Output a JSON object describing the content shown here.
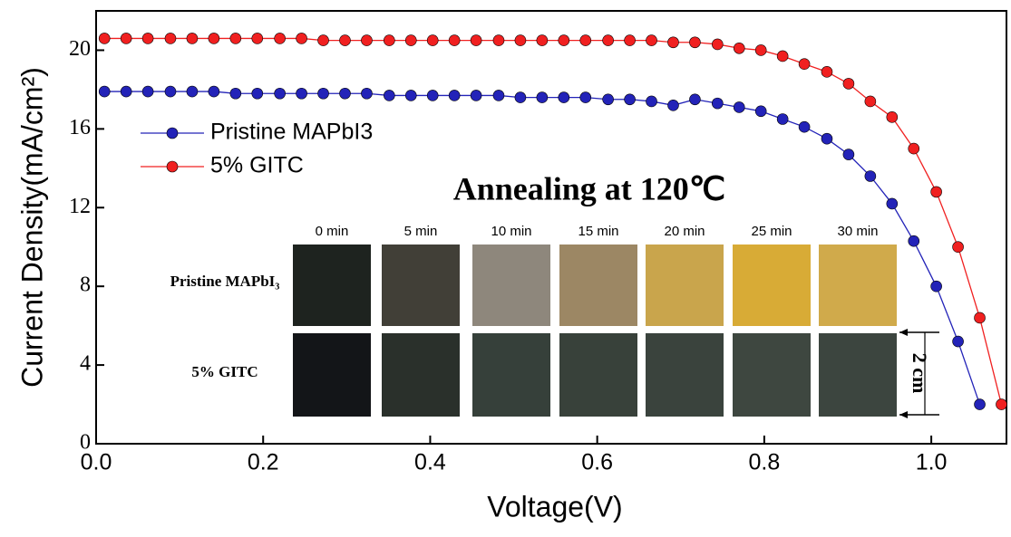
{
  "chart_data": {
    "type": "line",
    "x_label": "Voltage(V)",
    "y_label": "Current Density(mA/cm²)",
    "x": [
      0.01,
      0.036,
      0.062,
      0.089,
      0.115,
      0.141,
      0.167,
      0.193,
      0.22,
      0.246,
      0.272,
      0.298,
      0.324,
      0.351,
      0.377,
      0.403,
      0.429,
      0.455,
      0.482,
      0.508,
      0.534,
      0.56,
      0.586,
      0.613,
      0.639,
      0.665,
      0.691,
      0.717,
      0.744,
      0.77,
      0.796,
      0.822,
      0.848,
      0.875,
      0.901,
      0.927,
      0.953,
      0.979,
      1.006,
      1.032,
      1.058,
      1.084
    ],
    "series": [
      {
        "name": "Pristine MAPbI3",
        "color": "#2323b8",
        "values": [
          17.9,
          17.9,
          17.9,
          17.9,
          17.9,
          17.9,
          17.8,
          17.8,
          17.8,
          17.8,
          17.8,
          17.8,
          17.8,
          17.7,
          17.7,
          17.7,
          17.7,
          17.7,
          17.7,
          17.6,
          17.6,
          17.6,
          17.6,
          17.5,
          17.5,
          17.4,
          17.2,
          17.5,
          17.3,
          17.1,
          16.9,
          16.5,
          16.1,
          15.5,
          14.7,
          13.6,
          12.2,
          10.3,
          8.0,
          5.2,
          2.0,
          null
        ]
      },
      {
        "name": "5% GITC",
        "color": "#f02020",
        "values": [
          20.6,
          20.6,
          20.6,
          20.6,
          20.6,
          20.6,
          20.6,
          20.6,
          20.6,
          20.6,
          20.5,
          20.5,
          20.5,
          20.5,
          20.5,
          20.5,
          20.5,
          20.5,
          20.5,
          20.5,
          20.5,
          20.5,
          20.5,
          20.5,
          20.5,
          20.5,
          20.4,
          20.4,
          20.3,
          20.1,
          20.0,
          19.7,
          19.3,
          18.9,
          18.3,
          17.4,
          16.6,
          15.0,
          12.8,
          10.0,
          6.4,
          2.0
        ]
      }
    ],
    "xlim": [
      0,
      1.09
    ],
    "ylim": [
      0,
      22
    ],
    "xticks": [
      {
        "value": 0,
        "label": "0.0"
      },
      {
        "value": 0.2,
        "label": "0.2"
      },
      {
        "value": 0.4,
        "label": "0.4"
      },
      {
        "value": 0.6,
        "label": "0.6"
      },
      {
        "value": 0.8,
        "label": "0.8"
      },
      {
        "value": 1.0,
        "label": "1.0"
      }
    ],
    "yticks": [
      0,
      4,
      8,
      12,
      16,
      20
    ],
    "legend": "upper left",
    "inset": {
      "title": "Annealing at 120℃",
      "times": [
        "0 min",
        "5 min",
        "10 min",
        "15 min",
        "20 min",
        "25 min",
        "30 min"
      ],
      "rows": [
        "Pristine MAPbI₃",
        "5% GITC"
      ],
      "scale": "2 cm"
    }
  }
}
